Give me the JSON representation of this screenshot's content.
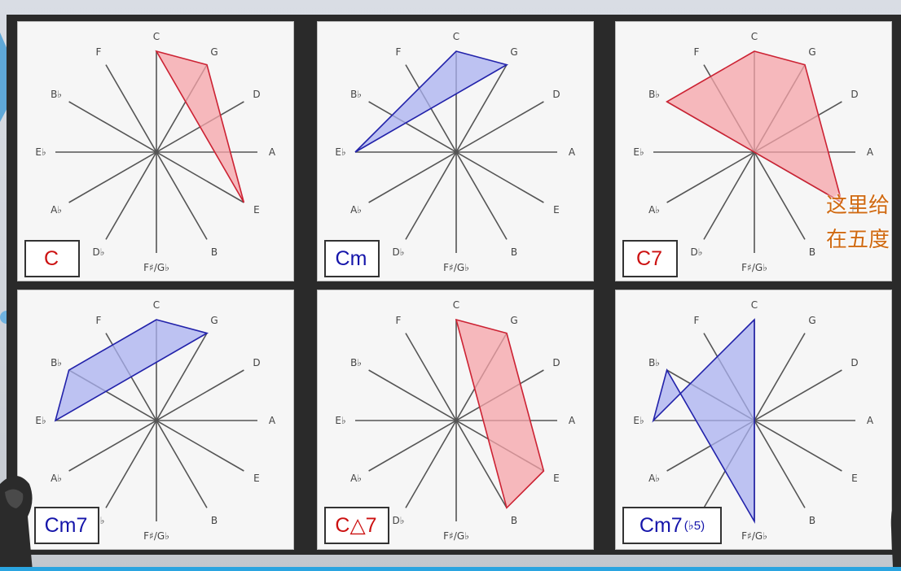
{
  "wheel_labels": [
    "C",
    "G",
    "D",
    "A",
    "E",
    "B",
    "F♯/G♭",
    "D♭",
    "A♭",
    "E♭",
    "B♭",
    "F"
  ],
  "overlay_text": [
    "这里给",
    "在五度"
  ],
  "panels": [
    {
      "chord": "C",
      "suffix": "",
      "color": "#cc1111",
      "fill": "#f5a3a8",
      "stroke": "#cc2233",
      "tones": [
        "C",
        "G",
        "E"
      ]
    },
    {
      "chord": "Cm",
      "suffix": "",
      "color": "#1515aa",
      "fill": "#aab0f0",
      "stroke": "#2222aa",
      "tones": [
        "C",
        "G",
        "E♭"
      ]
    },
    {
      "chord": "C7",
      "suffix": "",
      "color": "#cc1111",
      "fill": "#f5a3a8",
      "stroke": "#cc2233",
      "tones": [
        "C",
        "G",
        "E",
        "B♭"
      ]
    },
    {
      "chord": "Cm7",
      "suffix": "",
      "color": "#1515aa",
      "fill": "#aab0f0",
      "stroke": "#2222aa",
      "tones": [
        "C",
        "G",
        "E♭",
        "B♭"
      ]
    },
    {
      "chord": "C△7",
      "suffix": "",
      "color": "#cc1111",
      "fill": "#f5a3a8",
      "stroke": "#cc2233",
      "tones": [
        "C",
        "G",
        "E",
        "B"
      ]
    },
    {
      "chord": "Cm7",
      "suffix": "(♭5)",
      "color": "#1515aa",
      "fill": "#aab0f0",
      "stroke": "#2222aa",
      "tones": [
        "C",
        "E♭",
        "B♭",
        "F♯/G♭"
      ]
    }
  ]
}
